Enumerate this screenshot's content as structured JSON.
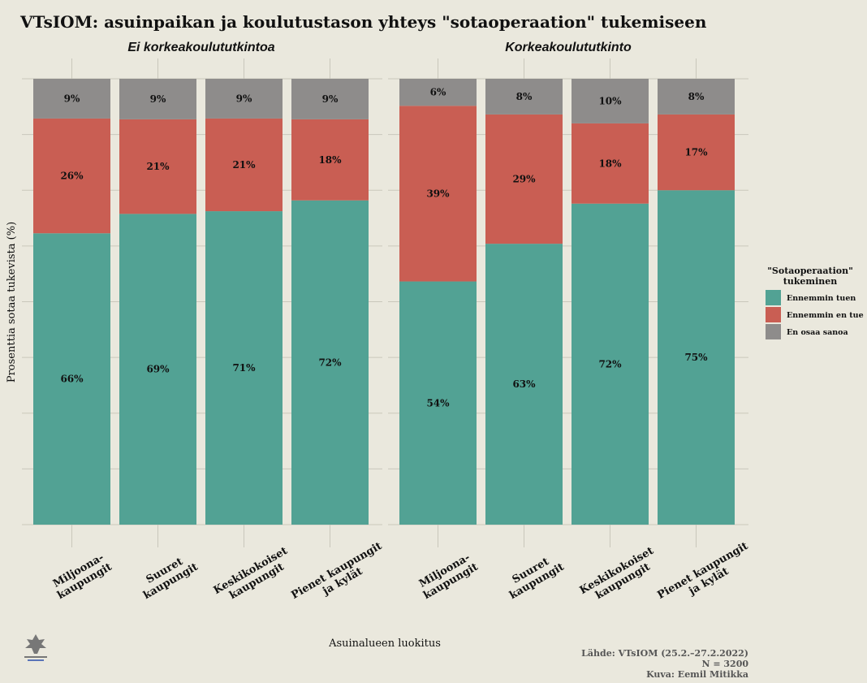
{
  "title": "VTsIOM: asuinpaikan ja koulutustason yhteys \"sotaoperaation\" tukemiseen",
  "y_axis_label": "Prosenttia sotaa tukevista (%)",
  "x_axis_label": "Asuinalueen luokitus",
  "legend": {
    "title_lines": [
      "\"Sotaoperaation\"",
      "tukeminen"
    ],
    "items": [
      {
        "label": "Ennemmin tuen",
        "color": "#52a294"
      },
      {
        "label": "Ennemmin en tue",
        "color": "#c95e53"
      },
      {
        "label": "En osaa sanoa",
        "color": "#8e8c8b"
      }
    ]
  },
  "source": {
    "line1": "Lähde: VTsIOM (25.2.–27.2.2022)",
    "line2": "N = 3200",
    "line3": "Kuva: Eemil Mitikka"
  },
  "logo": {
    "icon": "university-of-helsinki-logo",
    "text": "UNIVERSITY OF HELSINKI"
  },
  "chart_data": {
    "type": "bar",
    "stacked": true,
    "ylim": [
      0,
      100
    ],
    "ylabel": "Prosenttia sotaa tukevista (%)",
    "xlabel": "Asuinalueen luokitus",
    "categories": [
      [
        "Miljoona-",
        "kaupungit"
      ],
      [
        "Suuret",
        "kaupungit"
      ],
      [
        "Keskikokoiset",
        "kaupungit"
      ],
      [
        "Pienet kaupungit",
        "ja kylät"
      ]
    ],
    "series_names": [
      "Ennemmin tuen",
      "Ennemmin en tue",
      "En osaa sanoa"
    ],
    "colors": [
      "#52a294",
      "#c95e53",
      "#8e8c8b"
    ],
    "panels": [
      {
        "title": "Ei korkeakoulututkintoa",
        "values": [
          [
            66,
            26,
            9
          ],
          [
            69,
            21,
            9
          ],
          [
            71,
            21,
            9
          ],
          [
            72,
            18,
            9
          ]
        ]
      },
      {
        "title": "Korkeakoulututkinto",
        "values": [
          [
            54,
            39,
            6
          ],
          [
            63,
            29,
            8
          ],
          [
            72,
            18,
            10
          ],
          [
            75,
            17,
            8
          ]
        ]
      }
    ]
  }
}
